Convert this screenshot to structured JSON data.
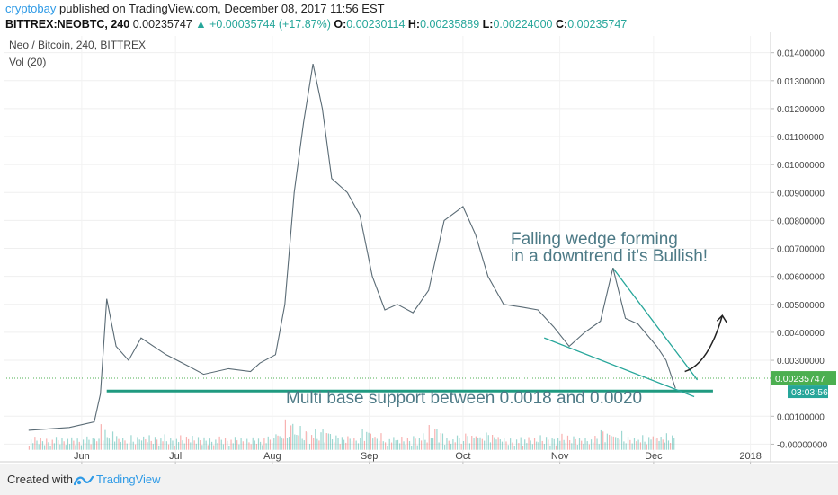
{
  "header": {
    "author": "cryptobay",
    "published": "published on TradingView.com, December 08, 2017 11:56 EST",
    "symbol": "BITTREX:NEOBTC, 240",
    "last": "0.00235747",
    "change": "▲ +0.00035744 (+17.87%)",
    "o_label": "O:",
    "o_value": "0.00230114",
    "h_label": "H:",
    "h_value": "0.00235889",
    "l_label": "L:",
    "l_value": "0.00224000",
    "c_label": "C:",
    "c_value": "0.00235747"
  },
  "chart_data": {
    "type": "line",
    "title": "Neo / Bitcoin, 240, BITTREX",
    "indicator": "Vol (20)",
    "x": [
      "2017-05-15",
      "2017-05-28",
      "2017-06-05",
      "2017-06-07",
      "2017-06-09",
      "2017-06-12",
      "2017-06-16",
      "2017-06-20",
      "2017-06-28",
      "2017-07-05",
      "2017-07-10",
      "2017-07-18",
      "2017-07-25",
      "2017-07-28",
      "2017-08-02",
      "2017-08-05",
      "2017-08-08",
      "2017-08-11",
      "2017-08-14",
      "2017-08-17",
      "2017-08-20",
      "2017-08-25",
      "2017-08-29",
      "2017-09-02",
      "2017-09-06",
      "2017-09-10",
      "2017-09-15",
      "2017-09-20",
      "2017-09-25",
      "2017-10-01",
      "2017-10-05",
      "2017-10-09",
      "2017-10-14",
      "2017-10-20",
      "2017-10-25",
      "2017-10-30",
      "2017-11-04",
      "2017-11-09",
      "2017-11-14",
      "2017-11-18",
      "2017-11-22",
      "2017-11-26",
      "2017-12-02",
      "2017-12-05",
      "2017-12-08"
    ],
    "y": [
      0.0005,
      0.0006,
      0.0008,
      0.0018,
      0.0052,
      0.0035,
      0.003,
      0.0038,
      0.0032,
      0.0028,
      0.0025,
      0.0027,
      0.0026,
      0.0029,
      0.0032,
      0.005,
      0.009,
      0.0115,
      0.0136,
      0.012,
      0.0095,
      0.009,
      0.0082,
      0.006,
      0.0048,
      0.005,
      0.0047,
      0.0055,
      0.008,
      0.0085,
      0.0075,
      0.006,
      0.005,
      0.0049,
      0.0048,
      0.0042,
      0.0035,
      0.004,
      0.0044,
      0.0063,
      0.0045,
      0.0043,
      0.0035,
      0.003,
      0.002
    ],
    "x_ticks": [
      "Jun",
      "Jul",
      "Aug",
      "Sep",
      "Oct",
      "Nov",
      "Dec",
      "2018"
    ],
    "x_tick_dates": [
      "2017-06-01",
      "2017-07-01",
      "2017-08-01",
      "2017-09-01",
      "2017-10-01",
      "2017-11-01",
      "2017-12-01",
      "2018-01-01"
    ],
    "y_ticks": [
      "0.01400000",
      "0.01300000",
      "0.01200000",
      "0.01100000",
      "0.01000000",
      "0.00900000",
      "0.00800000",
      "0.00700000",
      "0.00600000",
      "0.00500000",
      "0.00400000",
      "0.00300000",
      "0.00100000",
      "-0.00000000"
    ],
    "ylim": [
      -0.0005,
      0.0146
    ],
    "xlim": [
      "2017-05-07",
      "2018-01-06"
    ],
    "last_price_label": "0.00235747",
    "countdown_label": "03:03:56",
    "annotations": [
      {
        "text": "Falling wedge forming",
        "line": 1
      },
      {
        "text": "in a downtrend it's Bullish!",
        "line": 2
      },
      {
        "text": "Multi base support between 0.0018 and 0.0020",
        "line": 3
      }
    ],
    "colors": {
      "line": "#5a6b75",
      "annotation": "#26a69a",
      "arrow": "#222222",
      "label": "#4caf50",
      "countdown": "#26a69a"
    }
  },
  "footer": {
    "created_with": "Created with",
    "brand": "TradingView"
  }
}
